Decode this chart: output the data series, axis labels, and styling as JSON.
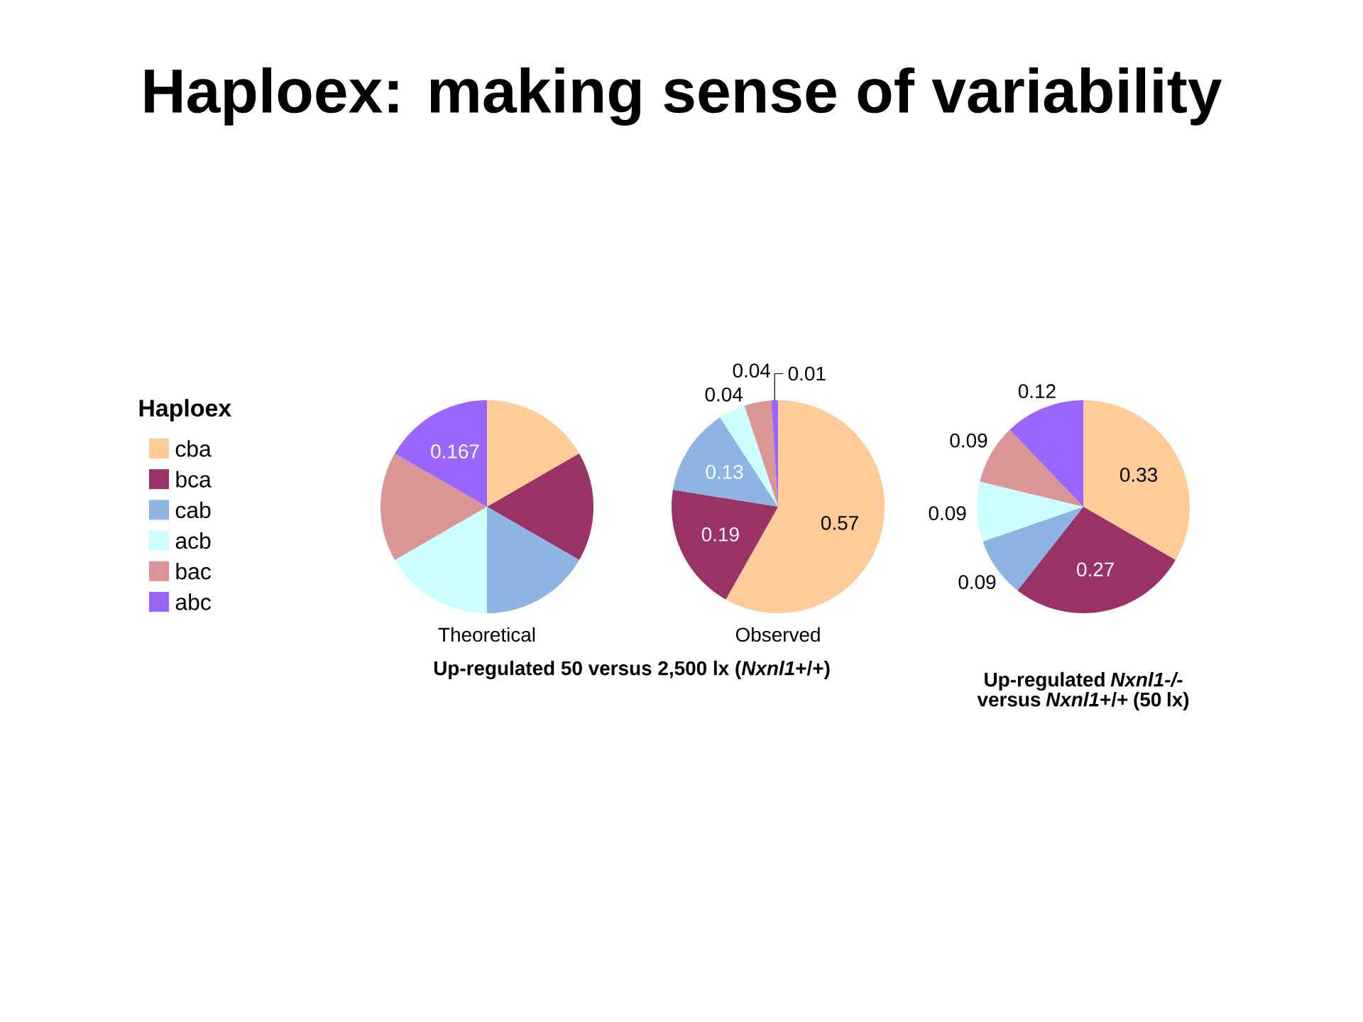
{
  "chart_data": [
    {
      "type": "pie",
      "title": "Haploex: making sense of variability",
      "legend_title": "Haploex",
      "legend": "left",
      "categories": [
        "cba",
        "bca",
        "cab",
        "acb",
        "bac",
        "abc"
      ],
      "values": [
        0.167,
        0.167,
        0.167,
        0.167,
        0.167,
        0.167
      ],
      "value_labels": [
        null,
        null,
        null,
        null,
        null,
        "0.167"
      ],
      "colors": [
        "#ffcc99",
        "#993366",
        "#8eb4e3",
        "#ccffff",
        "#d99694",
        "#9966ff"
      ],
      "xlabel": "Theoretical"
    },
    {
      "type": "pie",
      "categories": [
        null,
        null,
        null,
        null,
        null,
        null
      ],
      "values": [
        0.57,
        0.19,
        0.13,
        0.04,
        0.04,
        0.01
      ],
      "data_labels": true,
      "colors": [
        "#ffcc99",
        "#993366",
        "#8eb4e3",
        "#ccffff",
        "#d99694",
        "#9966ff"
      ],
      "xlabel": "Observed",
      "annotations": [
        "Up-regulated 50 versus 2,500 lx (*Nxnl1*+/+)"
      ]
    },
    {
      "type": "pie",
      "categories": [
        null,
        null,
        null,
        null,
        null,
        null
      ],
      "values": [
        0.33,
        0.27,
        0.09,
        0.09,
        0.09,
        0.12
      ],
      "data_labels": true,
      "colors": [
        "#ffcc99",
        "#993366",
        "#8eb4e3",
        "#ccffff",
        "#d99694",
        "#9966ff"
      ],
      "xlabel": "Up-regulated *Nxnl1-/-* versus *Nxnl1*+/+ (50 lx)"
    }
  ]
}
